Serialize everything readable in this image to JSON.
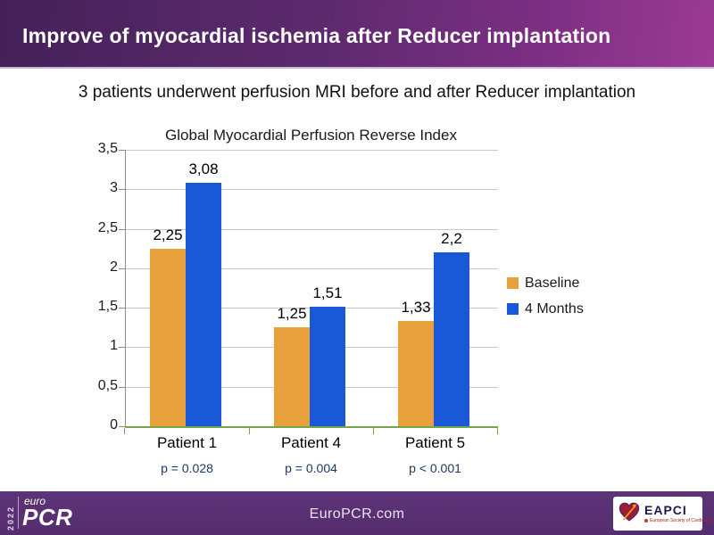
{
  "header": {
    "title": "Improve of myocardial ischemia after Reducer implantation",
    "bg_left": "#442158",
    "bg_right": "#9c3a94"
  },
  "subtitle": "3 patients underwent perfusion MRI before and after Reducer implantation",
  "chart_data": {
    "type": "bar",
    "title": "Global Myocardial Perfusion Reverse Index",
    "categories": [
      "Patient 1",
      "Patient 4",
      "Patient 5"
    ],
    "series": [
      {
        "name": "Baseline",
        "color": "#e8a13c",
        "values": [
          2.25,
          1.25,
          1.33
        ],
        "value_labels": [
          "2,25",
          "1,25",
          "1,33"
        ]
      },
      {
        "name": "4 Months",
        "color": "#1959d8",
        "values": [
          3.08,
          1.51,
          2.2
        ],
        "value_labels": [
          "3,08",
          "1,51",
          "2,2"
        ]
      }
    ],
    "p_values": [
      "p = 0.028",
      "p = 0.004",
      "p < 0.001"
    ],
    "y_ticks": [
      {
        "label": "3,5",
        "value": 3.5
      },
      {
        "label": "3",
        "value": 3
      },
      {
        "label": "2,5",
        "value": 2.5
      },
      {
        "label": "2",
        "value": 2
      },
      {
        "label": "1,5",
        "value": 1.5
      },
      {
        "label": "1",
        "value": 1
      },
      {
        "label": "0,5",
        "value": 0.5
      },
      {
        "label": "0",
        "value": 0
      }
    ],
    "ylim": [
      0,
      3.5
    ],
    "grid": true,
    "legend_position": "right",
    "axis_color": "#74a64a",
    "gridline_color": "#c9c9c9",
    "p_value_color": "#1f3864"
  },
  "footer": {
    "year": "2022",
    "logo_euro": "euro",
    "logo_pcr": "PCR",
    "url": "EuroPCR.com",
    "eapci": {
      "name": "EAPCI",
      "tagline": "European Society of Cardiology"
    }
  }
}
